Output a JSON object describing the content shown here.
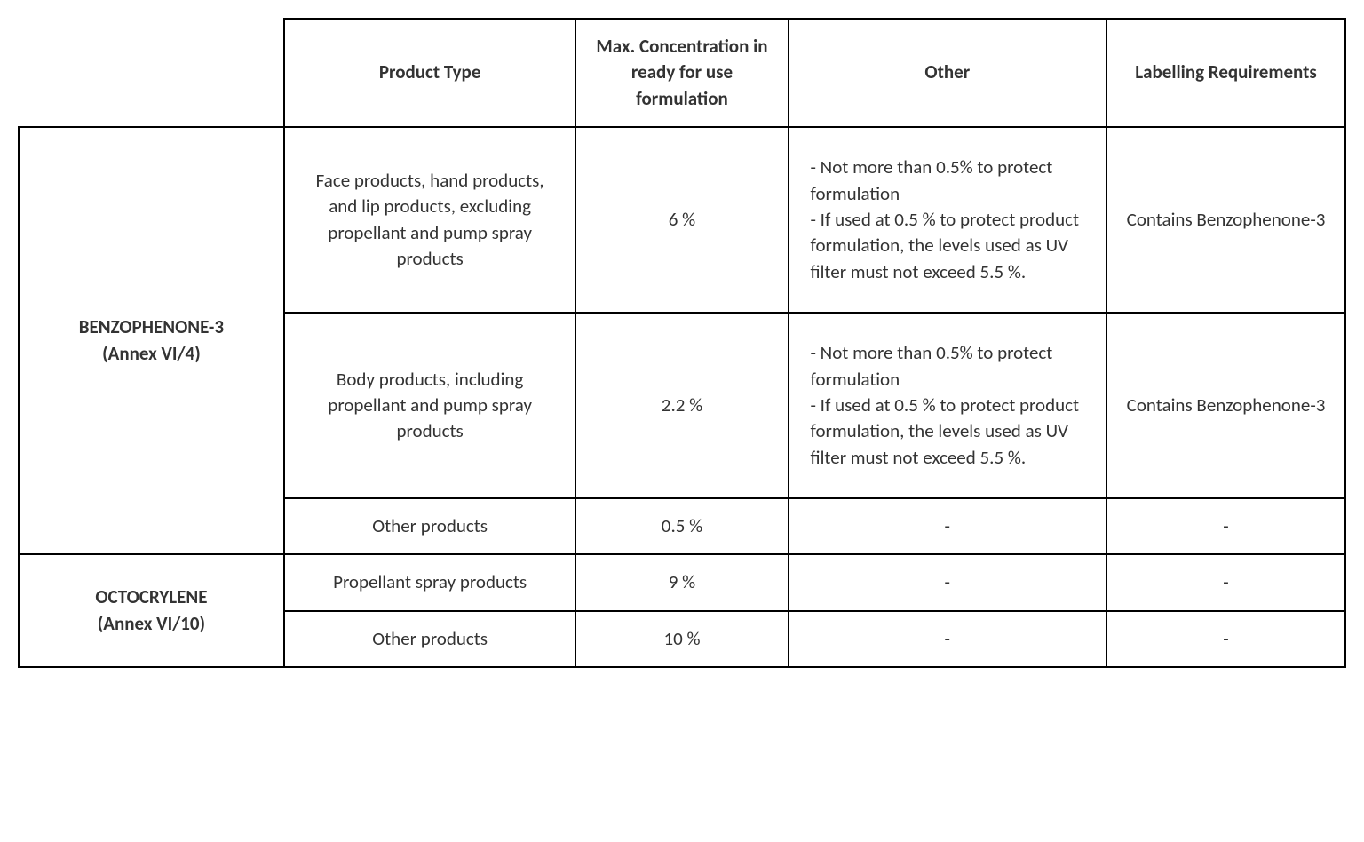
{
  "table": {
    "columns": {
      "product_type": "Product Type",
      "max_concentration": "Max. Concentration in ready for use formulation",
      "other": "Other",
      "labelling": "Labelling Requirements"
    },
    "substances": [
      {
        "name_line1": "BENZOPHENONE-3",
        "name_line2": "(Annex VI/4)",
        "rows": [
          {
            "product_type": "Face products, hand products, and lip products, excluding propellant and pump spray products",
            "max_concentration": "6 %",
            "other": "- Not more than 0.5% to protect formulation\n- If used at 0.5 % to protect product formulation, the levels used as UV filter must not exceed 5.5 %.",
            "labelling": "Contains Benzophenone-3"
          },
          {
            "product_type": "Body products, including propellant and pump spray products",
            "max_concentration": "2.2 %",
            "other": "- Not more than 0.5% to protect formulation\n- If used at 0.5 % to protect product formulation, the levels used as UV filter must not exceed 5.5 %.",
            "labelling": "Contains Benzophenone-3"
          },
          {
            "product_type": "Other products",
            "max_concentration": "0.5 %",
            "other": "-",
            "labelling": "-"
          }
        ]
      },
      {
        "name_line1": "OCTOCRYLENE",
        "name_line2": "(Annex VI/10)",
        "rows": [
          {
            "product_type": "Propellant spray products",
            "max_concentration": "9 %",
            "other": "-",
            "labelling": "-"
          },
          {
            "product_type": "Other products",
            "max_concentration": "10 %",
            "other": "-",
            "labelling": "-"
          }
        ]
      }
    ],
    "style": {
      "border_color": "#000000",
      "background_color": "#ffffff",
      "text_color": "#333333",
      "header_fontsize": 21,
      "cell_fontsize": 21,
      "font_family": "Calibri, Arial, sans-serif"
    }
  }
}
